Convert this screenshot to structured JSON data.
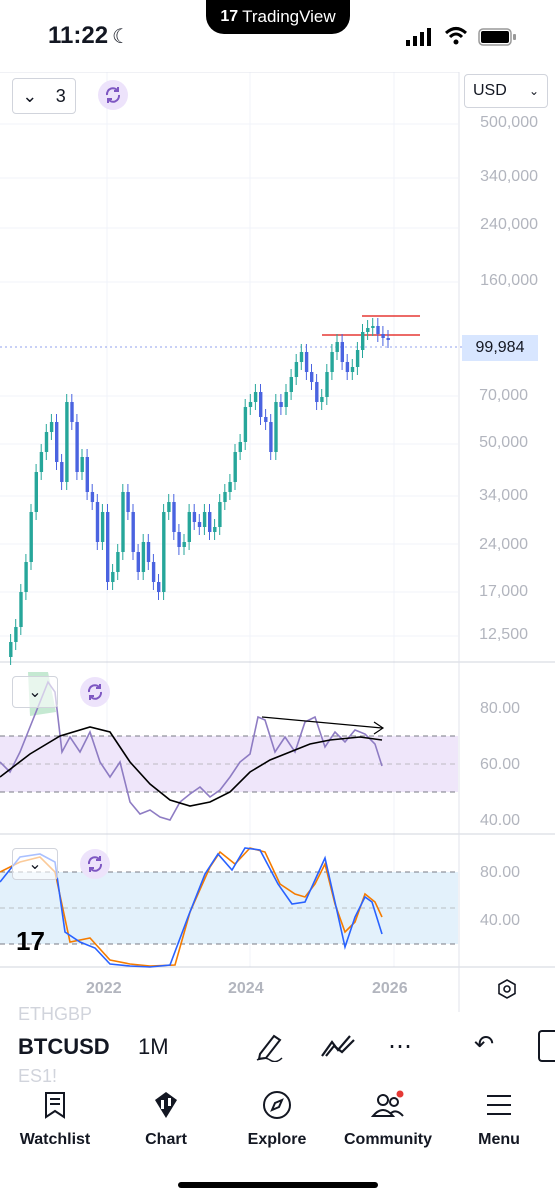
{
  "status": {
    "time": "11:22"
  },
  "app": {
    "name": "TradingView"
  },
  "chart": {
    "layout_count": "3",
    "currency": "USD",
    "current_price": "99,984",
    "price_axis": [
      "500,000",
      "340,000",
      "240,000",
      "160,000",
      "70,000",
      "50,000",
      "34,000",
      "24,000",
      "17,000",
      "12,500"
    ],
    "rsi_axis": [
      "80.00",
      "60.00",
      "40.00"
    ],
    "stoch_axis": [
      "80.00",
      "40.00"
    ],
    "time_axis": [
      "2022",
      "2024",
      "2026"
    ],
    "colors": {
      "up": "#26a69a",
      "down": "#4a63e0",
      "rsi_fill": "#efe6fa",
      "stoch_fill": "#e3f1fb",
      "red_line": "#e53935",
      "orange": "#f57c00"
    }
  },
  "chart_data": {
    "type": "candlestick",
    "symbol": "BTCUSD",
    "interval": "1M",
    "price_axis_scale": "log",
    "last_price": 99984
  },
  "toolbar": {
    "symbol": "BTCUSD",
    "interval": "1M",
    "ghost_symbols": [
      "ETHGBP",
      "ES1!"
    ]
  },
  "nav": {
    "items": [
      {
        "label": "Watchlist",
        "icon": "watchlist-icon"
      },
      {
        "label": "Chart",
        "icon": "chart-icon"
      },
      {
        "label": "Explore",
        "icon": "compass-icon"
      },
      {
        "label": "Community",
        "icon": "community-icon"
      },
      {
        "label": "Menu",
        "icon": "hamburger-icon"
      }
    ]
  }
}
